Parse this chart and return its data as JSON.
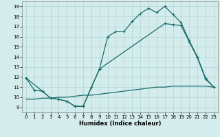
{
  "xlabel": "Humidex (Indice chaleur)",
  "bg_color": "#d4ecec",
  "line_color": "#1a6b6b",
  "grid_color": "#b0d4d4",
  "xlim": [
    -0.5,
    23.5
  ],
  "ylim": [
    8.5,
    19.5
  ],
  "xticks": [
    0,
    1,
    2,
    3,
    4,
    5,
    6,
    7,
    8,
    9,
    10,
    11,
    12,
    13,
    14,
    15,
    16,
    17,
    18,
    19,
    20,
    21,
    22,
    23
  ],
  "yticks": [
    9,
    10,
    11,
    12,
    13,
    14,
    15,
    16,
    17,
    18,
    19
  ],
  "line1_x": [
    0,
    1,
    2,
    3,
    4,
    5,
    6,
    7,
    8,
    9,
    10,
    11,
    12,
    13,
    14,
    15,
    16,
    17,
    18,
    19,
    20,
    21,
    22,
    23
  ],
  "line1_y": [
    11.9,
    10.7,
    10.6,
    9.9,
    9.8,
    9.6,
    9.1,
    9.1,
    11.0,
    12.8,
    16.0,
    16.5,
    16.5,
    17.5,
    18.3,
    18.8,
    18.4,
    19.0,
    18.2,
    17.4,
    15.6,
    14.0,
    11.9,
    11.0
  ],
  "line2_x": [
    0,
    2,
    3,
    4,
    5,
    6,
    7,
    9,
    17,
    18,
    19,
    20,
    21,
    22,
    23
  ],
  "line2_y": [
    11.9,
    10.6,
    9.9,
    9.8,
    9.6,
    9.1,
    9.1,
    12.8,
    17.3,
    17.2,
    17.1,
    15.5,
    13.9,
    11.8,
    11.0
  ],
  "line3_x": [
    0,
    1,
    2,
    3,
    4,
    5,
    6,
    7,
    8,
    9,
    10,
    11,
    12,
    13,
    14,
    15,
    16,
    17,
    18,
    19,
    20,
    21,
    22,
    23
  ],
  "line3_y": [
    9.8,
    9.8,
    9.9,
    9.9,
    10.0,
    10.0,
    10.1,
    10.2,
    10.2,
    10.3,
    10.4,
    10.5,
    10.6,
    10.7,
    10.8,
    10.9,
    11.0,
    11.0,
    11.1,
    11.1,
    11.1,
    11.1,
    11.1,
    11.0
  ]
}
